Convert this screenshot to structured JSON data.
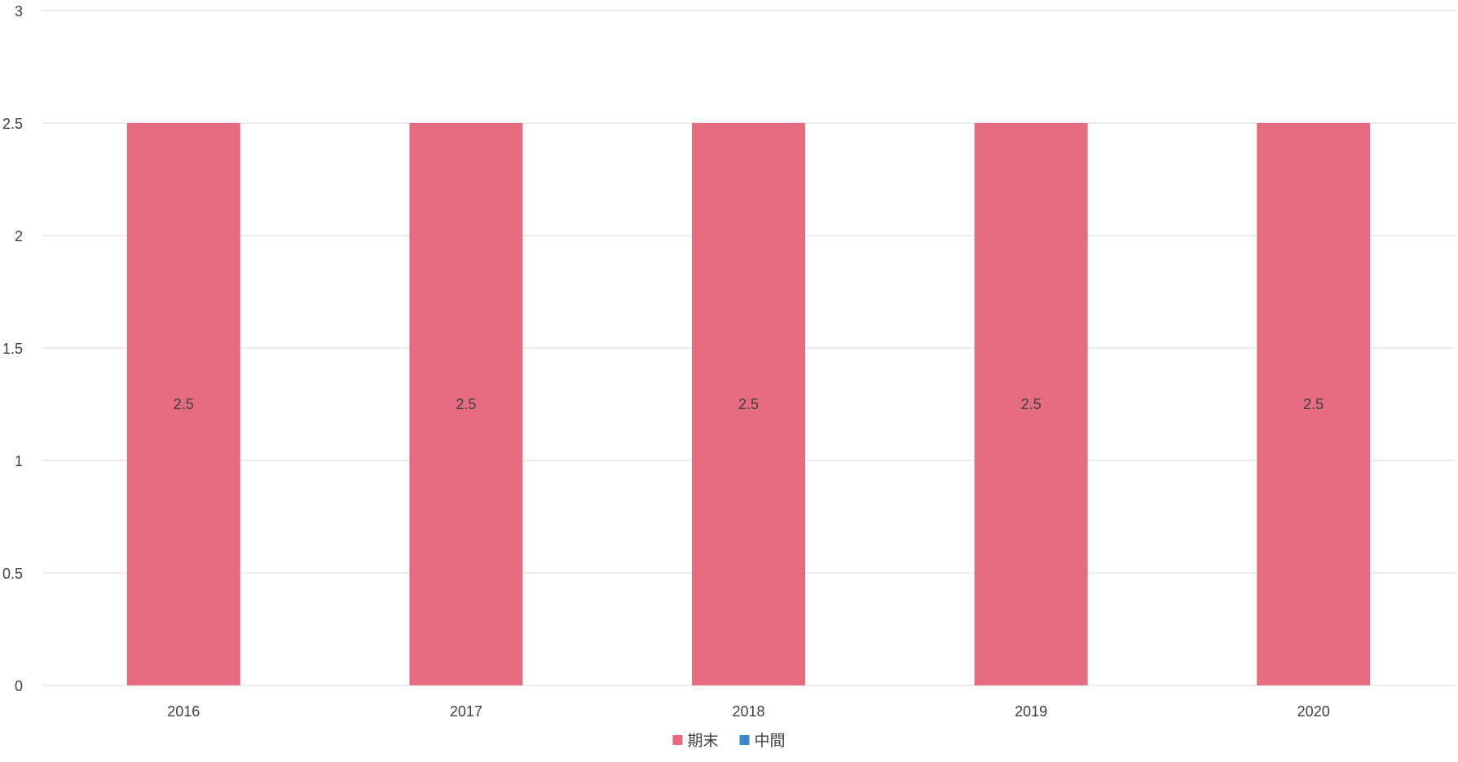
{
  "chart_data": {
    "type": "bar",
    "stacked": true,
    "categories": [
      "2016",
      "2017",
      "2018",
      "2019",
      "2020"
    ],
    "series": [
      {
        "name": "期末",
        "color": "#e56b81",
        "values": [
          2.5,
          2.5,
          2.5,
          2.5,
          2.5
        ]
      },
      {
        "name": "中間",
        "color": "#3a87c8",
        "values": [
          0,
          0,
          0,
          0,
          0
        ]
      }
    ],
    "data_labels": [
      "2.5",
      "2.5",
      "2.5",
      "2.5",
      "2.5"
    ],
    "ylim": [
      0,
      3
    ],
    "yticks": [
      0,
      0.5,
      1,
      1.5,
      2,
      2.5,
      3
    ],
    "ytick_labels": [
      "0",
      "0.5",
      "1",
      "1.5",
      "2",
      "2.5",
      "3"
    ],
    "title": "",
    "xlabel": "",
    "ylabel": "",
    "grid": true,
    "legend_position": "bottom-center"
  }
}
